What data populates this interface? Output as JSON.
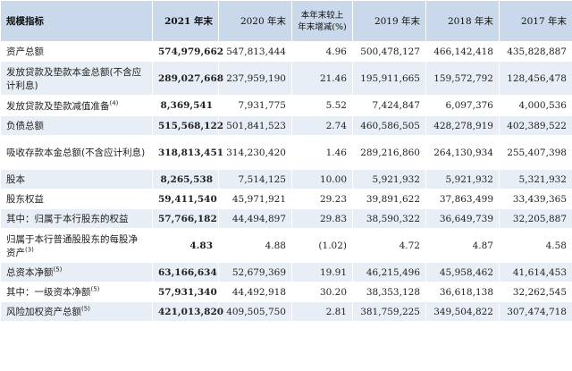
{
  "headers": {
    "label": "规模指标",
    "y2021": "2021 年末",
    "y2020": "2020 年末",
    "change": "本年末较上年末增减(%)",
    "y2019": "2019 年末",
    "y2018": "2018 年末",
    "y2017": "2017 年末"
  },
  "rows": [
    {
      "label": "资产总额",
      "sup": "",
      "v2021": "574,979,662",
      "v2020": "547,813,444",
      "change": "4.96",
      "v2019": "500,478,127",
      "v2018": "466,142,418",
      "v2017": "435,828,887"
    },
    {
      "label": "发放贷款及垫款本金总额(不含应计利息)",
      "sup": "",
      "v2021": "289,027,668",
      "v2020": "237,959,190",
      "change": "21.46",
      "v2019": "195,911,665",
      "v2018": "159,572,792",
      "v2017": "128,456,478"
    },
    {
      "label": "发放贷款及垫款减值准备",
      "sup": "(4)",
      "v2021": "8,369,541",
      "v2020": "7,931,775",
      "change": "5.52",
      "v2019": "7,424,847",
      "v2018": "6,097,376",
      "v2017": "4,000,536"
    },
    {
      "label": "负债总额",
      "sup": "",
      "v2021": "515,568,122",
      "v2020": "501,841,523",
      "change": "2.74",
      "v2019": "460,586,505",
      "v2018": "428,278,919",
      "v2017": "402,389,522"
    },
    {
      "label": "吸收存款本金总额(不含应计利息)",
      "sup": "",
      "v2021": "318,813,451",
      "v2020": "314,230,420",
      "change": "1.46",
      "v2019": "289,216,860",
      "v2018": "264,130,934",
      "v2017": "255,407,398"
    },
    {
      "label": "股本",
      "sup": "",
      "v2021": "8,265,538",
      "v2020": "7,514,125",
      "change": "10.00",
      "v2019": "5,921,932",
      "v2018": "5,921,932",
      "v2017": "5,321,932"
    },
    {
      "label": "股东权益",
      "sup": "",
      "v2021": "59,411,540",
      "v2020": "45,971,921",
      "change": "29.23",
      "v2019": "39,891,622",
      "v2018": "37,863,499",
      "v2017": "33,439,365"
    },
    {
      "label": "其中：归属于本行股东的权益",
      "sup": "",
      "v2021": "57,766,182",
      "v2020": "44,494,897",
      "change": "29.83",
      "v2019": "38,590,322",
      "v2018": "36,649,739",
      "v2017": "32,205,887"
    },
    {
      "label": "归属于本行普通股股东的每股净资产",
      "sup": "(3)",
      "v2021": "4.83",
      "v2020": "4.88",
      "change": "(1.02)",
      "v2019": "4.72",
      "v2018": "4.87",
      "v2017": "4.58"
    },
    {
      "label": "总资本净额",
      "sup": "(5)",
      "v2021": "63,166,634",
      "v2020": "52,679,369",
      "change": "19.91",
      "v2019": "46,215,496",
      "v2018": "45,958,462",
      "v2017": "41,614,453"
    },
    {
      "label": "其中：一级资本净额",
      "sup": "(5)",
      "v2021": "57,931,340",
      "v2020": "44,492,918",
      "change": "30.20",
      "v2019": "38,353,128",
      "v2018": "36,618,138",
      "v2017": "32,262,545"
    },
    {
      "label": "风险加权资产总额",
      "sup": "(5)",
      "v2021": "421,013,820",
      "v2020": "409,505,750",
      "change": "2.81",
      "v2019": "381,759,225",
      "v2018": "349,504,822",
      "v2017": "307,474,718"
    }
  ]
}
